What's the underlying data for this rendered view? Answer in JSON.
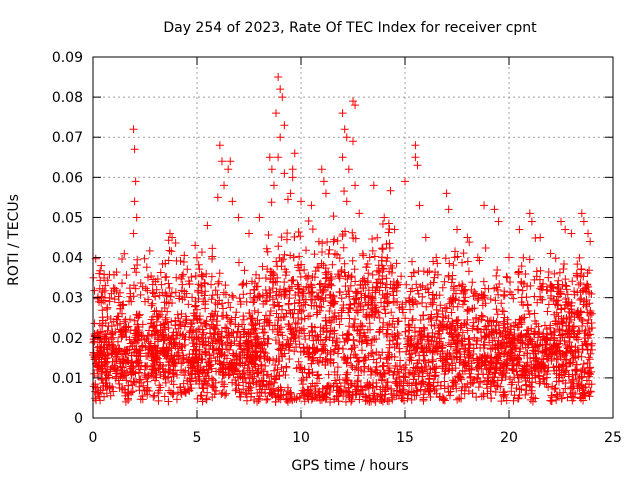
{
  "chart_data": {
    "type": "scatter",
    "title": "Day 254 of 2023, Rate Of TEC Index for receiver cpnt",
    "xlabel": "GPS time / hours",
    "ylabel": "ROTI / TECUs",
    "xlim": [
      0,
      25
    ],
    "ylim": [
      0,
      0.09
    ],
    "x_ticks": [
      "0",
      "5",
      "10",
      "15",
      "20",
      "25"
    ],
    "y_ticks": [
      "0",
      "0.01",
      "0.02",
      "0.03",
      "0.04",
      "0.05",
      "0.06",
      "0.07",
      "0.08",
      "0.09"
    ],
    "grid": true,
    "marker": "+",
    "color": "#ff0000",
    "series": [
      {
        "points": [
          [
            0.2,
            0.021
          ],
          [
            0.3,
            0.036
          ],
          [
            0.4,
            0.038
          ],
          [
            0.6,
            0.008
          ],
          [
            0.8,
            0.029
          ],
          [
            1.2,
            0.019
          ],
          [
            1.5,
            0.024
          ],
          [
            1.8,
            0.031
          ],
          [
            1.95,
            0.072
          ],
          [
            2.0,
            0.067
          ],
          [
            2.05,
            0.059
          ],
          [
            2.0,
            0.054
          ],
          [
            2.1,
            0.05
          ],
          [
            1.95,
            0.046
          ],
          [
            2.5,
            0.029
          ],
          [
            3.0,
            0.034
          ],
          [
            3.5,
            0.025
          ],
          [
            3.7,
            0.046
          ],
          [
            3.8,
            0.045
          ],
          [
            4.0,
            0.035
          ],
          [
            4.5,
            0.031
          ],
          [
            5.0,
            0.027
          ],
          [
            5.5,
            0.048
          ],
          [
            6.1,
            0.068
          ],
          [
            6.2,
            0.064
          ],
          [
            6.3,
            0.058
          ],
          [
            6.0,
            0.055
          ],
          [
            6.6,
            0.064
          ],
          [
            6.5,
            0.062
          ],
          [
            6.7,
            0.054
          ],
          [
            7.0,
            0.05
          ],
          [
            7.5,
            0.046
          ],
          [
            8.0,
            0.05
          ],
          [
            8.5,
            0.065
          ],
          [
            8.6,
            0.062
          ],
          [
            8.7,
            0.058
          ],
          [
            8.9,
            0.085
          ],
          [
            9.0,
            0.082
          ],
          [
            9.1,
            0.08
          ],
          [
            9.2,
            0.073
          ],
          [
            8.8,
            0.076
          ],
          [
            9.0,
            0.07
          ],
          [
            8.9,
            0.065
          ],
          [
            9.2,
            0.061
          ],
          [
            9.5,
            0.056
          ],
          [
            9.6,
            0.062
          ],
          [
            9.7,
            0.066
          ],
          [
            9.6,
            0.06
          ],
          [
            10.0,
            0.054
          ],
          [
            10.5,
            0.053
          ],
          [
            11.0,
            0.062
          ],
          [
            11.1,
            0.059
          ],
          [
            11.2,
            0.056
          ],
          [
            12.0,
            0.076
          ],
          [
            12.1,
            0.072
          ],
          [
            12.2,
            0.07
          ],
          [
            12.5,
            0.079
          ],
          [
            12.6,
            0.078
          ],
          [
            12.5,
            0.069
          ],
          [
            12.0,
            0.065
          ],
          [
            12.3,
            0.062
          ],
          [
            12.6,
            0.058
          ],
          [
            12.2,
            0.054
          ],
          [
            12.8,
            0.051
          ],
          [
            13.5,
            0.058
          ],
          [
            14.0,
            0.05
          ],
          [
            14.5,
            0.047
          ],
          [
            15.0,
            0.059
          ],
          [
            15.5,
            0.068
          ],
          [
            15.5,
            0.065
          ],
          [
            15.6,
            0.063
          ],
          [
            15.7,
            0.053
          ],
          [
            16.0,
            0.045
          ],
          [
            16.5,
            0.04
          ],
          [
            17.0,
            0.056
          ],
          [
            17.1,
            0.052
          ],
          [
            17.5,
            0.047
          ],
          [
            18.0,
            0.045
          ],
          [
            18.5,
            0.04
          ],
          [
            18.8,
            0.053
          ],
          [
            19.3,
            0.052
          ],
          [
            19.5,
            0.049
          ],
          [
            20.0,
            0.04
          ],
          [
            20.5,
            0.047
          ],
          [
            21.0,
            0.051
          ],
          [
            21.1,
            0.049
          ],
          [
            21.5,
            0.045
          ],
          [
            22.0,
            0.041
          ],
          [
            22.5,
            0.049
          ],
          [
            22.7,
            0.047
          ],
          [
            23.0,
            0.046
          ],
          [
            23.5,
            0.051
          ],
          [
            23.6,
            0.049
          ],
          [
            23.8,
            0.046
          ],
          [
            23.9,
            0.044
          ]
        ]
      }
    ]
  }
}
